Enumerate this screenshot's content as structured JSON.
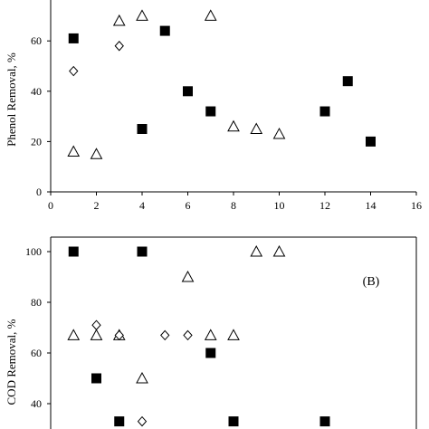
{
  "chart_data": [
    {
      "type": "scatter",
      "ylabel": "Phenol Removal, %",
      "xlim": [
        0,
        16
      ],
      "ylim": [
        0,
        80
      ],
      "x_ticks": [
        0,
        2,
        4,
        6,
        8,
        10,
        12,
        14,
        16
      ],
      "y_ticks": [
        0,
        20,
        40,
        60
      ],
      "panel_label": "",
      "series": [
        {
          "marker": "square",
          "points": [
            [
              1,
              61
            ],
            [
              4,
              25
            ],
            [
              5,
              64
            ],
            [
              6,
              40
            ],
            [
              7,
              32
            ],
            [
              12,
              32
            ],
            [
              13,
              44
            ],
            [
              14,
              20
            ]
          ]
        },
        {
          "marker": "triangle",
          "points": [
            [
              1,
              16
            ],
            [
              2,
              15
            ],
            [
              3,
              68
            ],
            [
              4,
              70
            ],
            [
              7,
              70
            ],
            [
              8,
              26
            ],
            [
              9,
              25
            ],
            [
              10,
              23
            ]
          ]
        },
        {
          "marker": "diamond",
          "points": [
            [
              1,
              48
            ],
            [
              3,
              58
            ]
          ]
        }
      ]
    },
    {
      "type": "scatter",
      "ylabel": "COD Removal, %",
      "xlim": [
        0,
        16
      ],
      "ylim": [
        30,
        100
      ],
      "y_ticks": [
        40,
        60,
        80,
        100
      ],
      "panel_label": "(B)",
      "series": [
        {
          "marker": "square",
          "points": [
            [
              1,
              100
            ],
            [
              2,
              50
            ],
            [
              3,
              33
            ],
            [
              4,
              100
            ],
            [
              7,
              60
            ],
            [
              8,
              33
            ],
            [
              12,
              33
            ]
          ]
        },
        {
          "marker": "triangle",
          "points": [
            [
              1,
              67
            ],
            [
              2,
              67
            ],
            [
              3,
              67
            ],
            [
              4,
              50
            ],
            [
              6,
              90
            ],
            [
              7,
              67
            ],
            [
              8,
              67
            ],
            [
              9,
              100
            ],
            [
              10,
              100
            ]
          ]
        },
        {
          "marker": "diamond",
          "points": [
            [
              2,
              71
            ],
            [
              3,
              67
            ],
            [
              5,
              67
            ],
            [
              6,
              67
            ],
            [
              4,
              33
            ]
          ]
        }
      ]
    }
  ]
}
